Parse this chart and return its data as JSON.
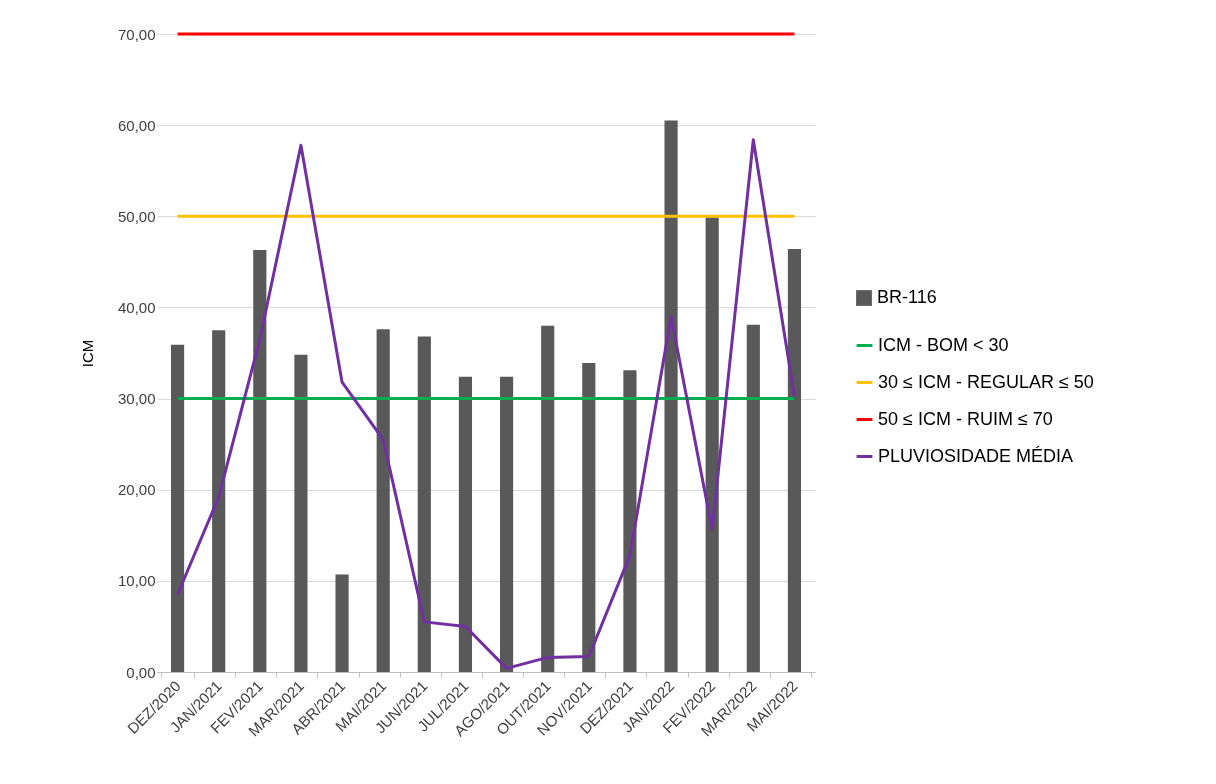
{
  "chart_data": {
    "type": "bar",
    "ylabel": "ICM",
    "categories": [
      "DEZ/2020",
      "JAN/2021",
      "FEV/2021",
      "MAR/2021",
      "ABR/2021",
      "MAI/2021",
      "JUN/2021",
      "JUL/2021",
      "AGO/2021",
      "OUT/2021",
      "NOV/2021",
      "DEZ/2021",
      "JAN/2022",
      "FEV/2022",
      "MAR/2022",
      "MAI/2022"
    ],
    "series": [
      {
        "name": "BR-116",
        "color": "#595959",
        "values": [
          35.9,
          37.5,
          46.3,
          34.8,
          10.7,
          37.6,
          36.8,
          32.4,
          32.4,
          38.0,
          33.9,
          33.1,
          60.5,
          49.9,
          38.1,
          46.4
        ]
      },
      {
        "name": "ICM - BOM < 30",
        "type": "line",
        "color": "#00b050",
        "values": [
          30,
          30,
          30,
          30,
          30,
          30,
          30,
          30,
          30,
          30,
          30,
          30,
          30,
          30,
          30,
          30
        ]
      },
      {
        "name": "30 ≤  ICM - REGULAR ≤ 50",
        "type": "line",
        "color": "#ffc000",
        "values": [
          50,
          50,
          50,
          50,
          50,
          50,
          50,
          50,
          50,
          50,
          50,
          50,
          50,
          50,
          50,
          50
        ]
      },
      {
        "name": "50 ≤ ICM - RUIM ≤ 70",
        "type": "line",
        "color": "#ff0000",
        "values": [
          70,
          70,
          70,
          70,
          70,
          70,
          70,
          70,
          70,
          70,
          70,
          70,
          70,
          70,
          70,
          70
        ]
      },
      {
        "name": "PLUVIOSIDADE MÉDIA",
        "type": "line",
        "color": "#7030a0",
        "values": [
          8.5,
          19.2,
          36.5,
          57.8,
          31.8,
          25.5,
          5.5,
          5.0,
          0.4,
          1.6,
          1.7,
          12.8,
          39.0,
          15.6,
          58.4,
          30.2
        ]
      }
    ],
    "ylim": [
      0,
      70
    ],
    "yticks": [
      {
        "value": 0,
        "label": "0,00"
      },
      {
        "value": 10,
        "label": "10,00"
      },
      {
        "value": 20,
        "label": "20,00"
      },
      {
        "value": 30,
        "label": "30,00"
      },
      {
        "value": 40,
        "label": "40,00"
      },
      {
        "value": 50,
        "label": "50,00"
      },
      {
        "value": 60,
        "label": "60,00"
      },
      {
        "value": 70,
        "label": "70,00"
      }
    ],
    "grid": "y",
    "legend": "right"
  }
}
